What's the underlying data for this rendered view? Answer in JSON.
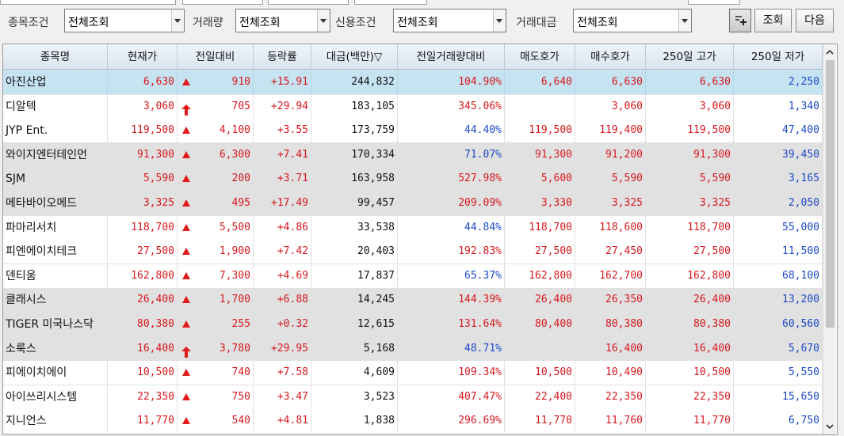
{
  "filters": {
    "labels": [
      "종목조건",
      "거래량",
      "신용조건",
      "거래대금"
    ],
    "values": [
      "전체조회",
      "전체조회",
      "전체조회",
      "전체조회"
    ],
    "query_button": "조회",
    "next_button": "다음",
    "settings_icon": "add-column-icon"
  },
  "table": {
    "headers": [
      "종목명",
      "현재가",
      "전일대비",
      "등락률",
      "대금(백만)▽",
      "전일거래량대비",
      "매도호가",
      "매수호가",
      "250일 고가",
      "250일 저가"
    ],
    "rows": [
      {
        "name": "아진산업",
        "price": "6,630",
        "mark": "up",
        "change": "910",
        "rate": "+15.91",
        "amount": "244,832",
        "vol_ratio": "104.90%",
        "ratio_color": "red",
        "ask": "6,640",
        "bid": "6,630",
        "high": "6,630",
        "low": "2,250"
      },
      {
        "name": "디알텍",
        "price": "3,060",
        "mark": "limit",
        "change": "705",
        "rate": "+29.94",
        "amount": "183,105",
        "vol_ratio": "345.06%",
        "ratio_color": "red",
        "ask": "",
        "bid": "3,060",
        "high": "3,060",
        "low": "1,340"
      },
      {
        "name": "JYP Ent.",
        "price": "119,500",
        "mark": "up",
        "change": "4,100",
        "rate": "+3.55",
        "amount": "173,759",
        "vol_ratio": "44.40%",
        "ratio_color": "blue",
        "ask": "119,500",
        "bid": "119,400",
        "high": "119,500",
        "low": "47,400"
      },
      {
        "name": "와이지엔터테인먼",
        "price": "91,300",
        "mark": "up",
        "change": "6,300",
        "rate": "+7.41",
        "amount": "170,334",
        "vol_ratio": "71.07%",
        "ratio_color": "blue",
        "ask": "91,300",
        "bid": "91,200",
        "high": "91,300",
        "low": "39,450"
      },
      {
        "name": "SJM",
        "price": "5,590",
        "mark": "up",
        "change": "200",
        "rate": "+3.71",
        "amount": "163,958",
        "vol_ratio": "527.98%",
        "ratio_color": "red",
        "ask": "5,600",
        "bid": "5,590",
        "high": "5,590",
        "low": "3,165"
      },
      {
        "name": "메타바이오메드",
        "price": "3,325",
        "mark": "up",
        "change": "495",
        "rate": "+17.49",
        "amount": "99,457",
        "vol_ratio": "209.09%",
        "ratio_color": "red",
        "ask": "3,330",
        "bid": "3,325",
        "high": "3,325",
        "low": "2,050"
      },
      {
        "name": "파마리서치",
        "price": "118,700",
        "mark": "up",
        "change": "5,500",
        "rate": "+4.86",
        "amount": "33,538",
        "vol_ratio": "44.84%",
        "ratio_color": "blue",
        "ask": "118,700",
        "bid": "118,600",
        "high": "118,700",
        "low": "55,000"
      },
      {
        "name": "피엔에이치테크",
        "price": "27,500",
        "mark": "up",
        "change": "1,900",
        "rate": "+7.42",
        "amount": "20,403",
        "vol_ratio": "192.83%",
        "ratio_color": "red",
        "ask": "27,500",
        "bid": "27,450",
        "high": "27,500",
        "low": "11,500"
      },
      {
        "name": "덴티움",
        "price": "162,800",
        "mark": "up",
        "change": "7,300",
        "rate": "+4.69",
        "amount": "17,837",
        "vol_ratio": "65.37%",
        "ratio_color": "blue",
        "ask": "162,800",
        "bid": "162,700",
        "high": "162,800",
        "low": "68,100"
      },
      {
        "name": "클래시스",
        "price": "26,400",
        "mark": "up",
        "change": "1,700",
        "rate": "+6.88",
        "amount": "14,245",
        "vol_ratio": "144.39%",
        "ratio_color": "red",
        "ask": "26,400",
        "bid": "26,350",
        "high": "26,400",
        "low": "13,200"
      },
      {
        "name": "TIGER 미국나스닥",
        "price": "80,380",
        "mark": "up",
        "change": "255",
        "rate": "+0.32",
        "amount": "12,615",
        "vol_ratio": "131.64%",
        "ratio_color": "red",
        "ask": "80,400",
        "bid": "80,380",
        "high": "80,380",
        "low": "60,560"
      },
      {
        "name": "소룩스",
        "price": "16,400",
        "mark": "limit",
        "change": "3,780",
        "rate": "+29.95",
        "amount": "5,168",
        "vol_ratio": "48.71%",
        "ratio_color": "blue",
        "ask": "",
        "bid": "16,400",
        "high": "16,400",
        "low": "5,670"
      },
      {
        "name": "피에이치에이",
        "price": "10,500",
        "mark": "up",
        "change": "740",
        "rate": "+7.58",
        "amount": "4,609",
        "vol_ratio": "109.34%",
        "ratio_color": "red",
        "ask": "10,500",
        "bid": "10,490",
        "high": "10,500",
        "low": "5,550"
      },
      {
        "name": "아이쓰리시스템",
        "price": "22,350",
        "mark": "up",
        "change": "750",
        "rate": "+3.47",
        "amount": "3,523",
        "vol_ratio": "407.47%",
        "ratio_color": "red",
        "ask": "22,400",
        "bid": "22,350",
        "high": "22,350",
        "low": "15,650"
      },
      {
        "name": "지니언스",
        "price": "11,770",
        "mark": "up",
        "change": "540",
        "rate": "+4.81",
        "amount": "1,838",
        "vol_ratio": "296.69%",
        "ratio_color": "red",
        "ask": "11,770",
        "bid": "11,760",
        "high": "11,770",
        "low": "6,750"
      }
    ]
  },
  "colors": {
    "up": "#d8181e",
    "down": "#1c49c8",
    "selected_row": "#c5e3f0",
    "alt_row": "#e1e1e1"
  }
}
